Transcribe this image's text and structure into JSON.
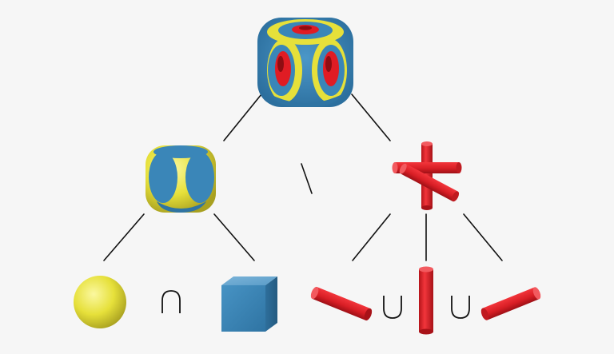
{
  "tree": {
    "root": {
      "name": "result-shape",
      "description_icon": "csg-result-icon"
    },
    "root_operator": "\\",
    "left_child": {
      "name": "intersection-shape",
      "operator": "∩",
      "operands": [
        "sphere",
        "cube"
      ]
    },
    "right_child": {
      "name": "union-shape",
      "operators": [
        "∪",
        "∪"
      ],
      "operands": [
        "cylinder-x",
        "cylinder-y",
        "cylinder-z"
      ]
    }
  },
  "colors": {
    "background": "#f6f6f6",
    "blue": "#3a86b8",
    "yellow": "#e6e03a",
    "red": "#e01c24",
    "line": "#111111"
  }
}
